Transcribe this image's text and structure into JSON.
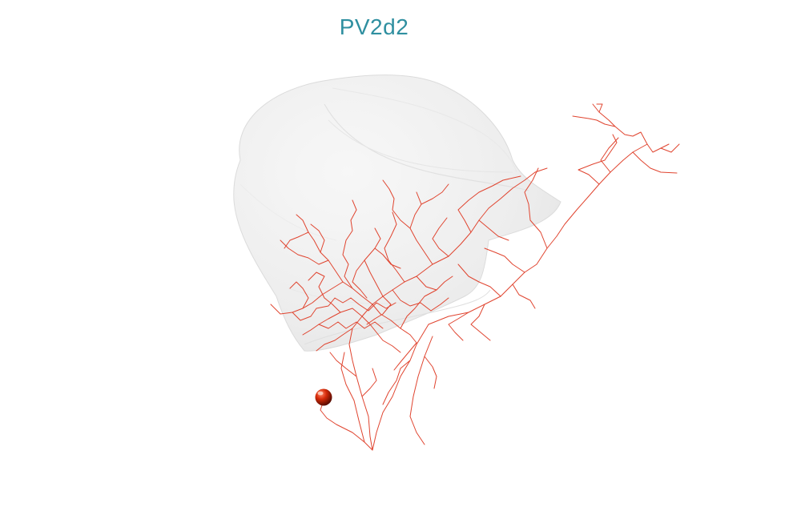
{
  "title": "PV2d2",
  "colors": {
    "title": "#2f8fa0",
    "neuron": "#e0442f",
    "soma": "#c41a00",
    "volume_fill": "#eeeeee",
    "volume_edge": "#dcdcdc"
  },
  "icons": {
    "soma": "red-sphere-icon"
  }
}
